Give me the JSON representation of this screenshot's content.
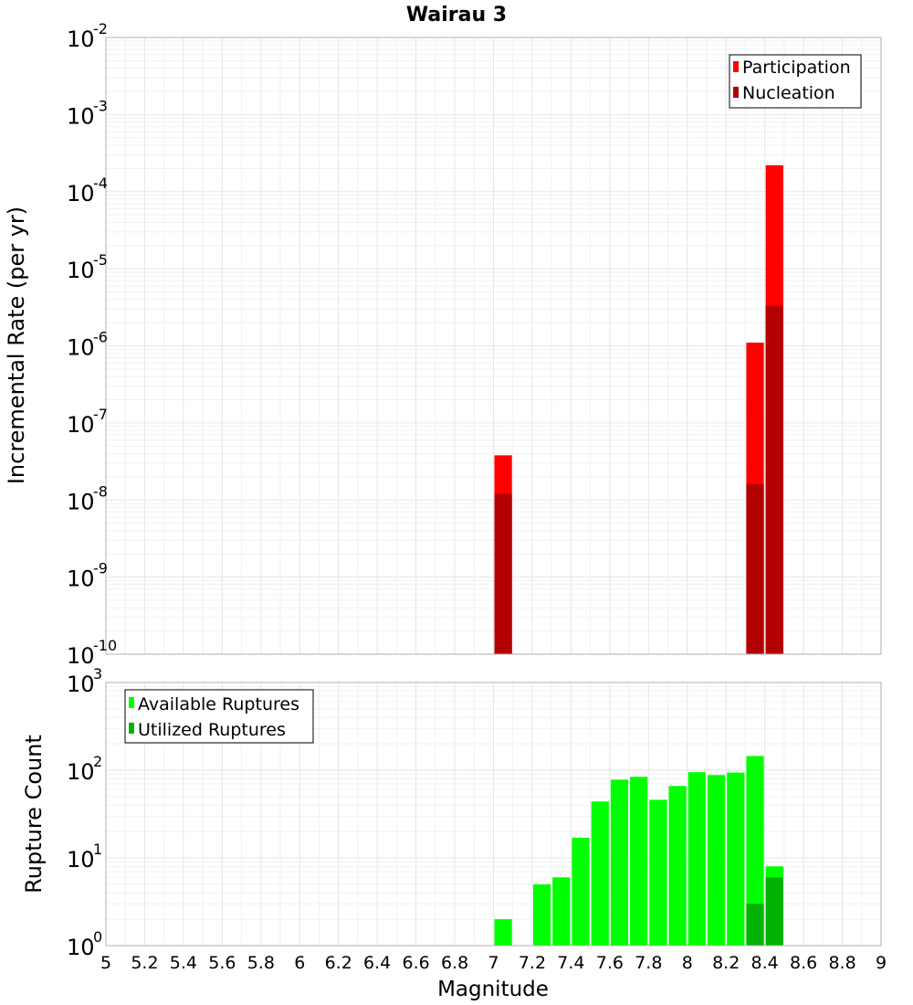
{
  "chart_data": [
    {
      "type": "bar",
      "title": "Wairau 3",
      "xlabel": "",
      "ylabel": "Incremental Rate (per yr)",
      "yscale": "log",
      "ylim_exp": [
        -10,
        -2
      ],
      "xlim": [
        5,
        9
      ],
      "grid": true,
      "legend_position": "top-right",
      "legend": [
        {
          "label": "Participation",
          "color": "#ff0000"
        },
        {
          "label": "Nucleation",
          "color": "#b30000"
        }
      ],
      "series": [
        {
          "name": "Participation",
          "color": "#ff0000",
          "points": [
            {
              "x": 7.05,
              "y": 3.8e-08
            },
            {
              "x": 8.35,
              "y": 1.1e-06
            },
            {
              "x": 8.45,
              "y": 0.00022
            }
          ]
        },
        {
          "name": "Nucleation",
          "color": "#b30000",
          "points": [
            {
              "x": 7.05,
              "y": 1.2e-08
            },
            {
              "x": 8.35,
              "y": 1.6e-08
            },
            {
              "x": 8.45,
              "y": 3.3e-06
            }
          ]
        }
      ]
    },
    {
      "type": "bar",
      "title": "",
      "xlabel": "Magnitude",
      "ylabel": "Rupture Count",
      "yscale": "log",
      "ylim_exp": [
        0,
        3
      ],
      "xlim": [
        5,
        9
      ],
      "grid": true,
      "legend_position": "top-left",
      "legend": [
        {
          "label": "Available Ruptures",
          "color": "#00ff00"
        },
        {
          "label": "Utilized Ruptures",
          "color": "#00b300"
        }
      ],
      "series": [
        {
          "name": "Available Ruptures",
          "color": "#00ff00",
          "points": [
            {
              "x": 6.55,
              "y": 1
            },
            {
              "x": 6.95,
              "y": 1
            },
            {
              "x": 7.05,
              "y": 2
            },
            {
              "x": 7.15,
              "y": 1
            },
            {
              "x": 7.25,
              "y": 5
            },
            {
              "x": 7.35,
              "y": 6
            },
            {
              "x": 7.45,
              "y": 17
            },
            {
              "x": 7.55,
              "y": 44
            },
            {
              "x": 7.65,
              "y": 78
            },
            {
              "x": 7.75,
              "y": 84
            },
            {
              "x": 7.85,
              "y": 46
            },
            {
              "x": 7.95,
              "y": 66
            },
            {
              "x": 8.05,
              "y": 95
            },
            {
              "x": 8.15,
              "y": 88
            },
            {
              "x": 8.25,
              "y": 94
            },
            {
              "x": 8.35,
              "y": 145
            },
            {
              "x": 8.45,
              "y": 8
            }
          ]
        },
        {
          "name": "Utilized Ruptures",
          "color": "#00b300",
          "points": [
            {
              "x": 7.05,
              "y": 1
            },
            {
              "x": 8.35,
              "y": 3
            },
            {
              "x": 8.45,
              "y": 6
            }
          ]
        }
      ]
    }
  ],
  "x_ticks": [
    "5",
    "5.2",
    "5.4",
    "5.6",
    "5.8",
    "6",
    "6.2",
    "6.4",
    "6.6",
    "6.8",
    "7",
    "7.2",
    "7.4",
    "7.6",
    "7.8",
    "8",
    "8.2",
    "8.4",
    "8.6",
    "8.8",
    "9"
  ]
}
